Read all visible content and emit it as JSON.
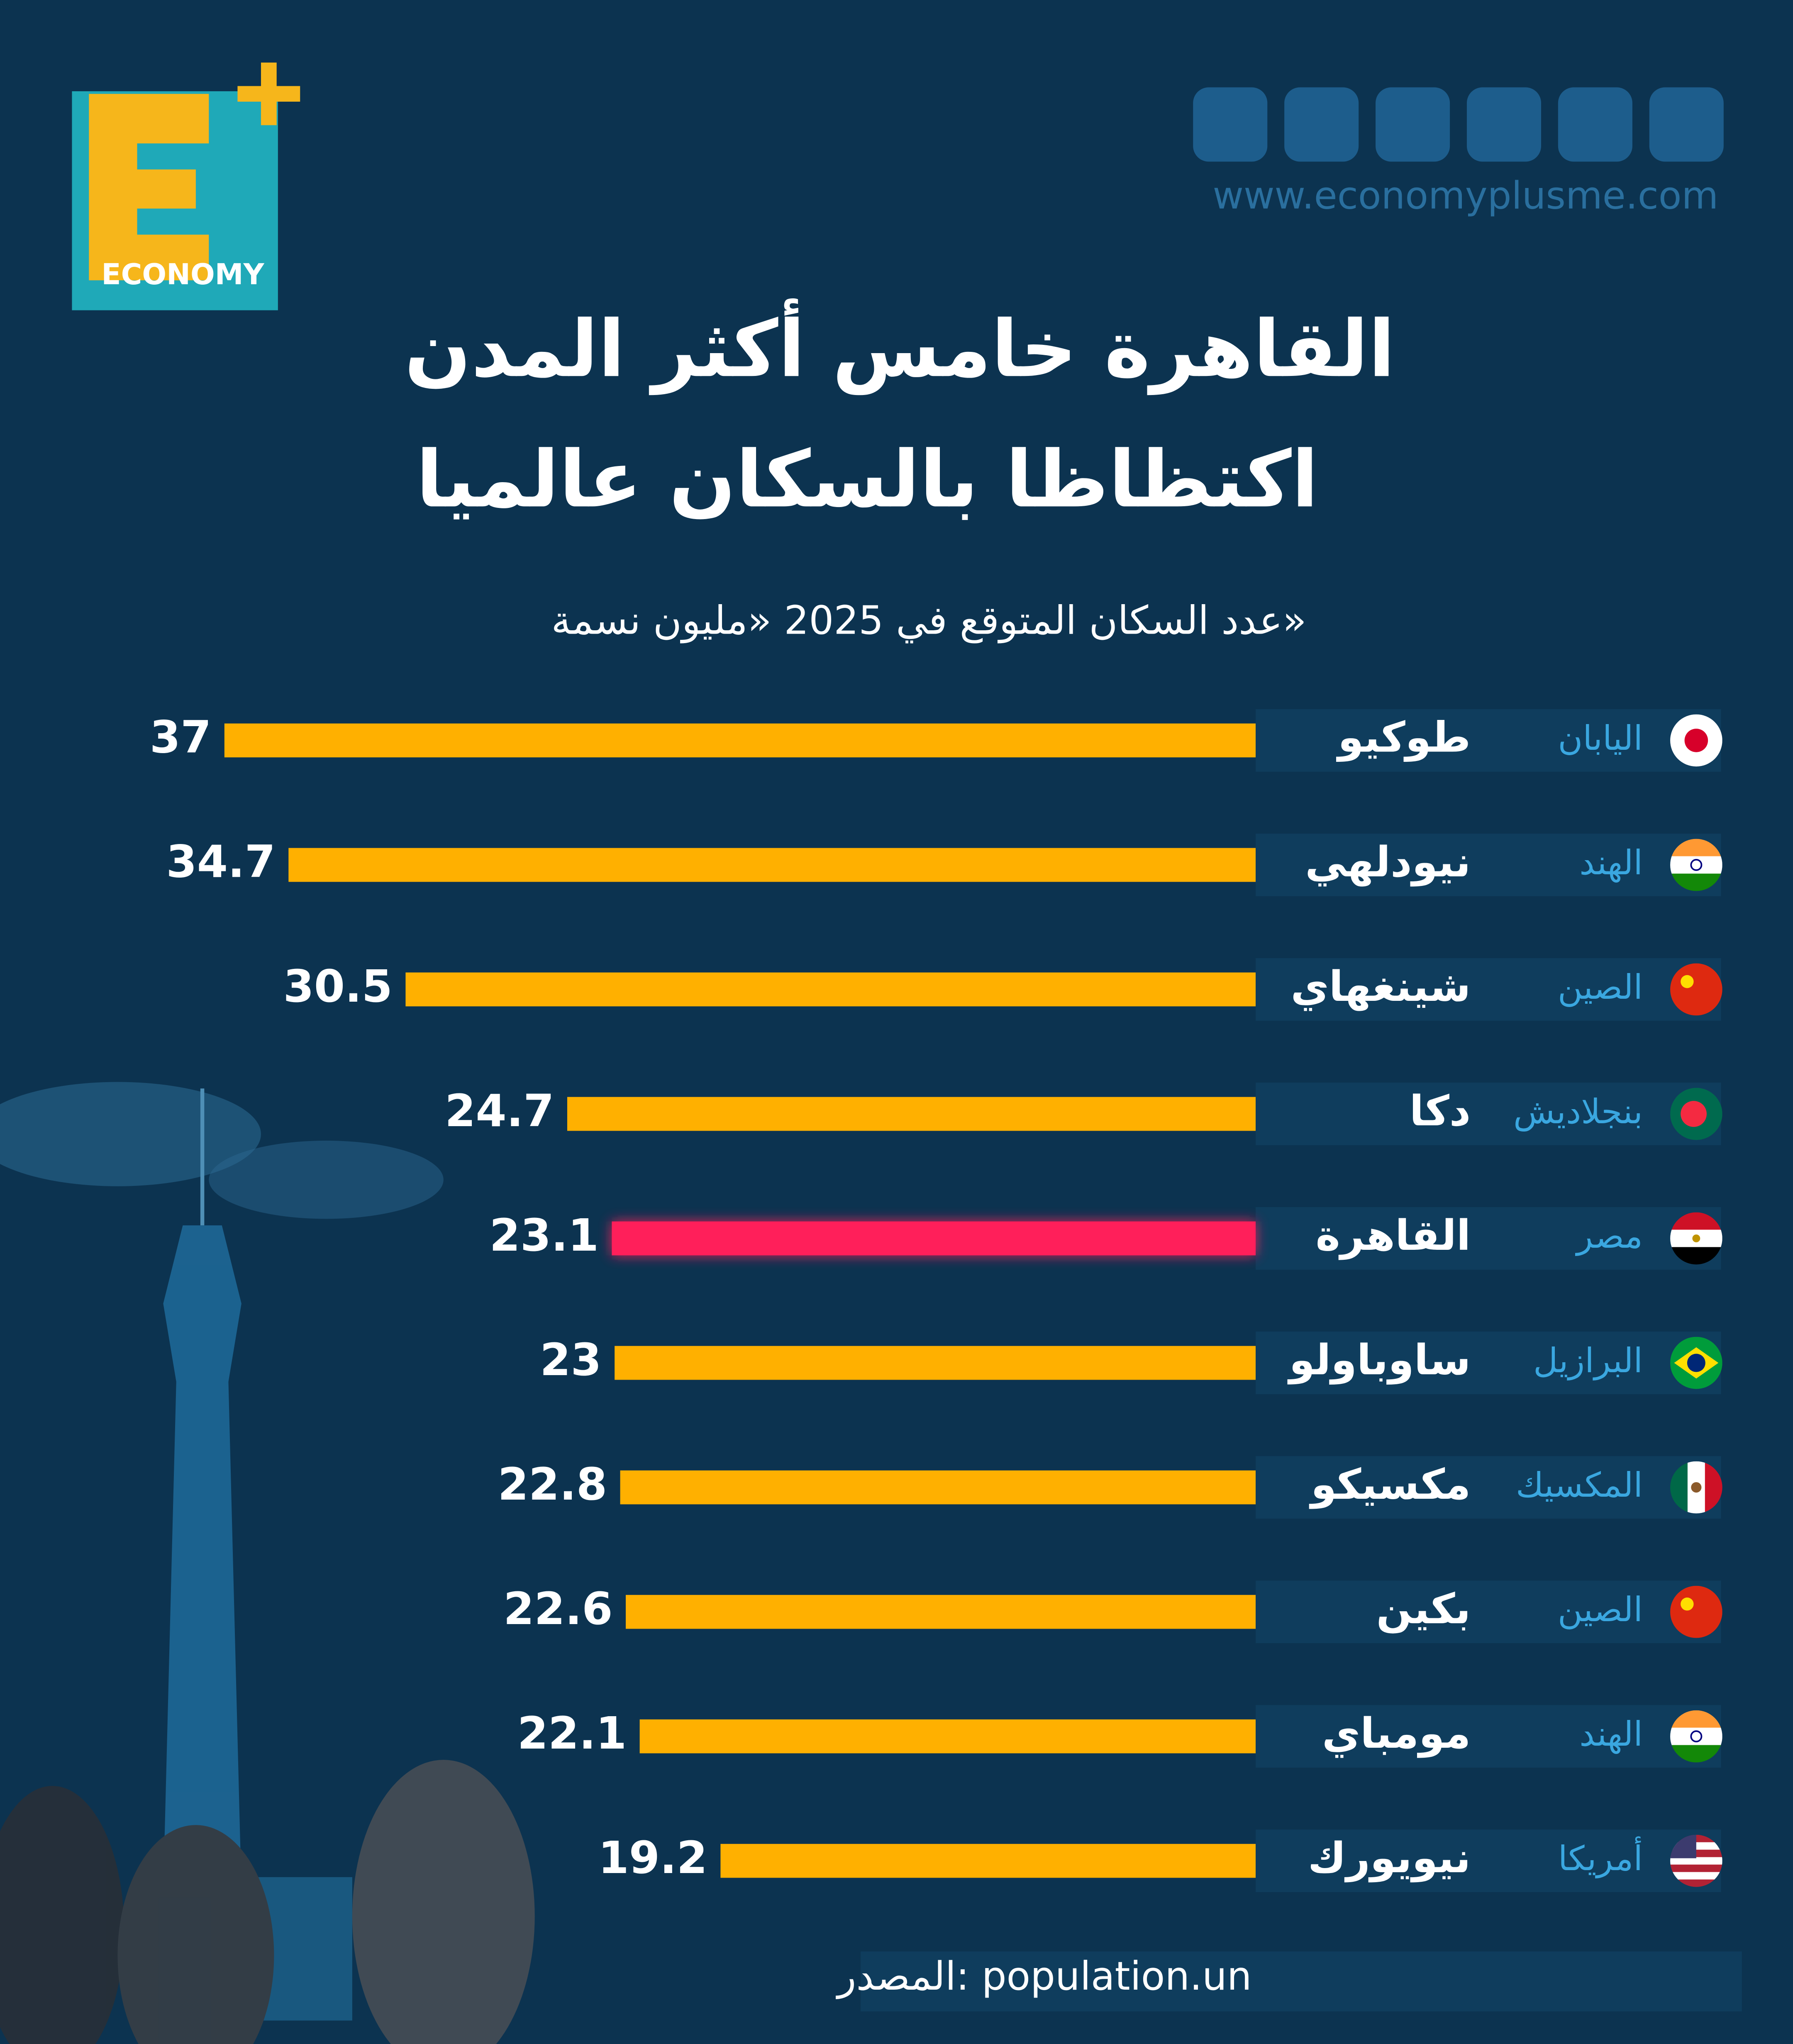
{
  "brand": {
    "logo_text": "ECONOMY",
    "website": "www.economyplusme.com"
  },
  "chart_data": {
    "type": "bar",
    "title": [
      "القاهرة خامس أكثر المدن",
      "اكتظاظا بالسكان عالميا"
    ],
    "subtitle": "عدد السكان المتوقع في 2025 «مليون نسمة»",
    "categories": [
      "طوكيو",
      "نيودلهي",
      "شينغهاي",
      "دكا",
      "القاهرة",
      "ساوباولو",
      "مكسيكو",
      "بكين",
      "مومباي",
      "نيويورك"
    ],
    "countries": [
      "اليابان",
      "الهند",
      "الصين",
      "بنجلاديش",
      "مصر",
      "البرازيل",
      "المكسيك",
      "الصين",
      "الهند",
      "أمريكا"
    ],
    "values": [
      37,
      34.7,
      30.5,
      24.7,
      23.1,
      23,
      22.8,
      22.6,
      22.1,
      19.2
    ],
    "colors": [
      "#ffb000",
      "#ffb000",
      "#ffb000",
      "#ffb000",
      "#ff1f5a",
      "#ffb000",
      "#ffb000",
      "#ffb000",
      "#ffb000",
      "#ffb000"
    ],
    "source": "المصدر: population.un"
  }
}
